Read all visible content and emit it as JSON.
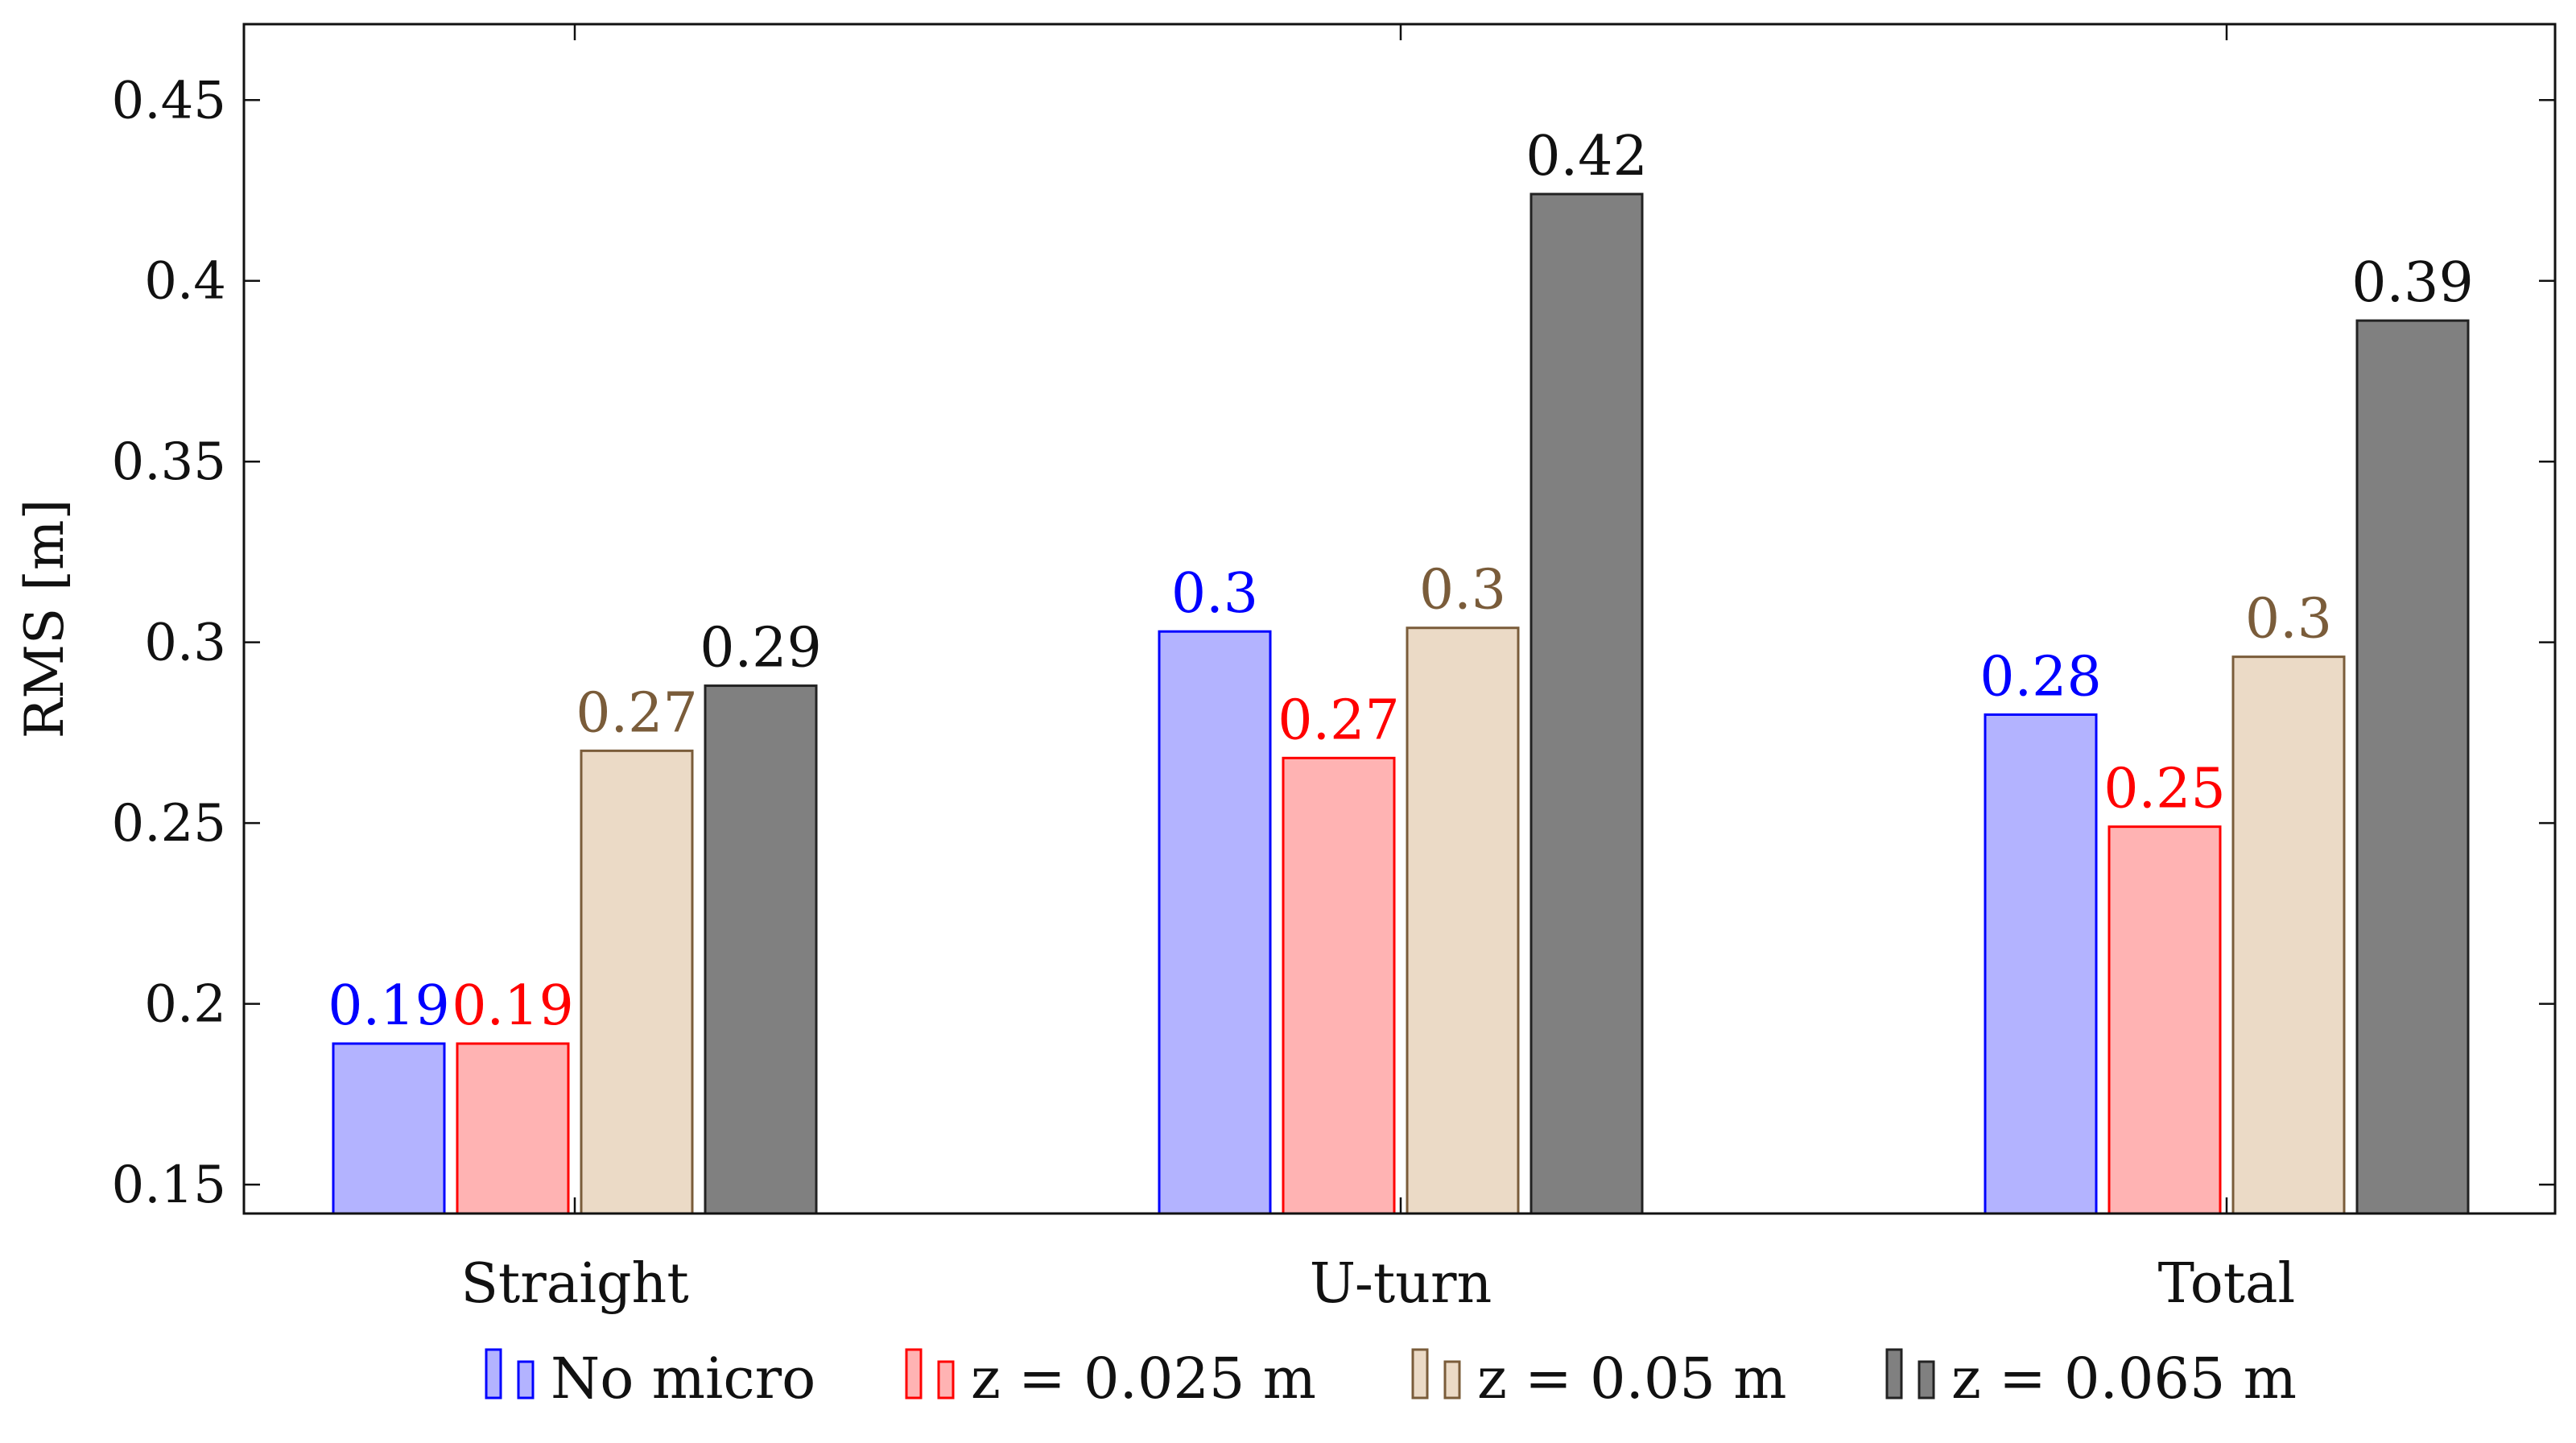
{
  "chart_data": {
    "type": "bar",
    "title": "",
    "xlabel": "",
    "ylabel": "RMS [m]",
    "ylim": [
      0.142,
      0.471
    ],
    "yticks": [
      0.15,
      0.2,
      0.25,
      0.3,
      0.35,
      0.4,
      0.45
    ],
    "ytick_labels": [
      "0.15",
      "0.2",
      "0.25",
      "0.3",
      "0.35",
      "0.4",
      "0.45"
    ],
    "categories": [
      "Straight",
      "U-turn",
      "Total"
    ],
    "series": [
      {
        "name": "No micro",
        "fill": "#b3b3ff",
        "stroke": "#0000ff",
        "label_color": "#0000ff",
        "values": [
          0.189,
          0.303,
          0.28
        ],
        "labels": [
          "0.19",
          "0.3",
          "0.28"
        ]
      },
      {
        "name": "z = 0.025 m",
        "fill": "#ffb3b3",
        "stroke": "#ff0000",
        "label_color": "#ff0000",
        "values": [
          0.189,
          0.268,
          0.249
        ],
        "labels": [
          "0.19",
          "0.27",
          "0.25"
        ]
      },
      {
        "name": "z = 0.05 m",
        "fill": "#ebdac6",
        "stroke": "#7a5c3a",
        "label_color": "#7a5c3a",
        "values": [
          0.27,
          0.304,
          0.296
        ],
        "labels": [
          "0.27",
          "0.3",
          "0.3"
        ]
      },
      {
        "name": "z = 0.065 m",
        "fill": "#808080",
        "stroke": "#222222",
        "label_color": "#111111",
        "values": [
          0.288,
          0.424,
          0.389
        ],
        "labels": [
          "0.29",
          "0.42",
          "0.39"
        ]
      }
    ],
    "legend_position": "bottom",
    "grid": false
  }
}
